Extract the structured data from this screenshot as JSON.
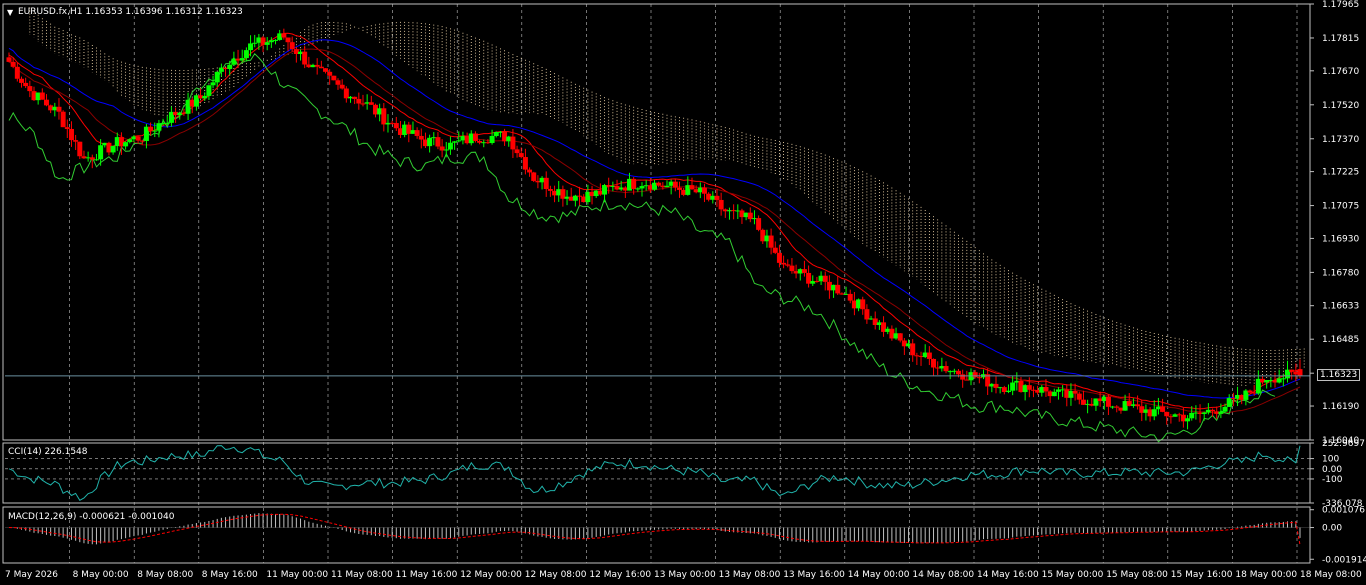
{
  "symbol_line": "EURUSD.fx,H1  1.16353 1.16396 1.16312 1.16323",
  "price_label": "1.16323",
  "cci_label": "CCI(14) 226.1548",
  "macd_label": "MACD(12,26,9) -0.000621 -0.001040",
  "colors": {
    "background": "#000000",
    "bull": "#00ff00",
    "bear": "#ff0000",
    "cloud": "#ffe4b5",
    "kijun": "#0000ff",
    "tenkan": "#ff0000",
    "chikou": "#32cd32",
    "cci": "#20b2aa",
    "signal": "#ff0000",
    "hist": "#c0c0c0",
    "grid": "#c0c0c0"
  },
  "chart_data": {
    "type": "candlestick",
    "main": {
      "symbol": "EURUSD.fx",
      "timeframe": "H1",
      "ohlc_last": {
        "open": 1.16353,
        "high": 1.16396,
        "low": 1.16312,
        "close": 1.16323
      },
      "ylim": [
        1.1604,
        1.17965
      ],
      "y_ticks": [
        "1.17965",
        "1.17815",
        "1.17670",
        "1.17520",
        "1.17370",
        "1.17225",
        "1.17075",
        "1.16930",
        "1.16780",
        "1.16633",
        "1.16485",
        "1.16335",
        "1.16190",
        "1.16040"
      ],
      "close_path_x": [
        0,
        5,
        12,
        18,
        26,
        32,
        37,
        46,
        52,
        58,
        66,
        73,
        79,
        86,
        93,
        100,
        106,
        112,
        120,
        126,
        134,
        140,
        146,
        152,
        158,
        166,
        172,
        179,
        186,
        193,
        200,
        206,
        212,
        218,
        226,
        232,
        238,
        244,
        252,
        258,
        264,
        270,
        276,
        284,
        290,
        296,
        302,
        310
      ],
      "close_path_y": [
        1.1771,
        1.1758,
        1.1748,
        1.1728,
        1.1735,
        1.1738,
        1.1745,
        1.1755,
        1.177,
        1.1778,
        1.1782,
        1.1768,
        1.176,
        1.1752,
        1.1742,
        1.1736,
        1.1734,
        1.1738,
        1.1738,
        1.172,
        1.1712,
        1.1712,
        1.1716,
        1.1718,
        1.1716,
        1.1713,
        1.1705,
        1.17,
        1.168,
        1.1675,
        1.167,
        1.166,
        1.165,
        1.1642,
        1.1635,
        1.1632,
        1.1628,
        1.1628,
        1.1624,
        1.1622,
        1.162,
        1.1618,
        1.1616,
        1.1614,
        1.1618,
        1.1622,
        1.1632,
        1.16323
      ],
      "x_axis_labels": [
        "7 May 2026",
        "8 May 00:00",
        "8 May 08:00",
        "8 May 16:00",
        "11 May 00:00",
        "11 May 08:00",
        "11 May 16:00",
        "12 May 00:00",
        "12 May 08:00",
        "12 May 16:00",
        "13 May 00:00",
        "13 May 08:00",
        "13 May 16:00",
        "14 May 00:00",
        "14 May 08:00",
        "14 May 16:00",
        "15 May 00:00",
        "15 May 08:00",
        "15 May 16:00",
        "18 May 00:00",
        "18 May 08:00"
      ]
    },
    "cci": {
      "name": "CCI(14)",
      "last": 226.1548,
      "ylim": [
        -336.078,
        252.9697
      ],
      "levels": [
        100,
        0,
        -100
      ],
      "tick_labels": [
        "252.9697",
        "100",
        "0.00",
        "-100",
        "-336.078"
      ]
    },
    "macd": {
      "name": "MACD(12,26,9)",
      "params": [
        12,
        26,
        9
      ],
      "main_last": -0.000621,
      "signal_last": -0.00104,
      "ylim": [
        -0.00214,
        0.00124
      ],
      "tick_labels": [
        "0.001076",
        "0.00",
        "-0.001914"
      ]
    }
  }
}
